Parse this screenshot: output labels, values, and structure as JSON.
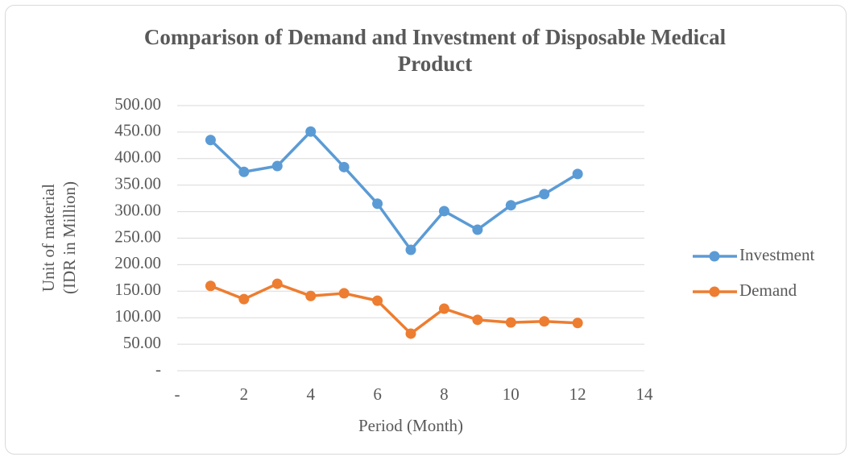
{
  "chart_data": {
    "type": "line",
    "title": "Comparison of Demand and Investment of Disposable Medical Product",
    "xlabel": "Period (Month)",
    "ylabel": [
      "Unit of material",
      "(IDR in Million)"
    ],
    "x": [
      1,
      2,
      3,
      4,
      5,
      6,
      7,
      8,
      9,
      10,
      11,
      12
    ],
    "series": [
      {
        "name": "Investment",
        "color": "#5b9bd5",
        "values": [
          435,
          375,
          386,
          451,
          384,
          315,
          228,
          301,
          266,
          312,
          333,
          371
        ]
      },
      {
        "name": "Demand",
        "color": "#ed7d31",
        "values": [
          160,
          135,
          164,
          141,
          146,
          132,
          70,
          117,
          96,
          91,
          93,
          90
        ]
      }
    ],
    "xlim": [
      0,
      14
    ],
    "xticks": [
      {
        "value": 0,
        "label": "-"
      },
      2,
      4,
      6,
      8,
      10,
      12,
      14
    ],
    "ylim": [
      0,
      500
    ],
    "yticks": [
      {
        "value": 0,
        "label": "-"
      },
      {
        "value": 50,
        "label": "50.00"
      },
      {
        "value": 100,
        "label": "100.00"
      },
      {
        "value": 150,
        "label": "150.00"
      },
      {
        "value": 200,
        "label": "200.00"
      },
      {
        "value": 250,
        "label": "250.00"
      },
      {
        "value": 300,
        "label": "300.00"
      },
      {
        "value": 350,
        "label": "350.00"
      },
      {
        "value": 400,
        "label": "400.00"
      },
      {
        "value": 450,
        "label": "450.00"
      },
      {
        "value": 500,
        "label": "500.00"
      }
    ],
    "grid": true,
    "legend": "right"
  }
}
